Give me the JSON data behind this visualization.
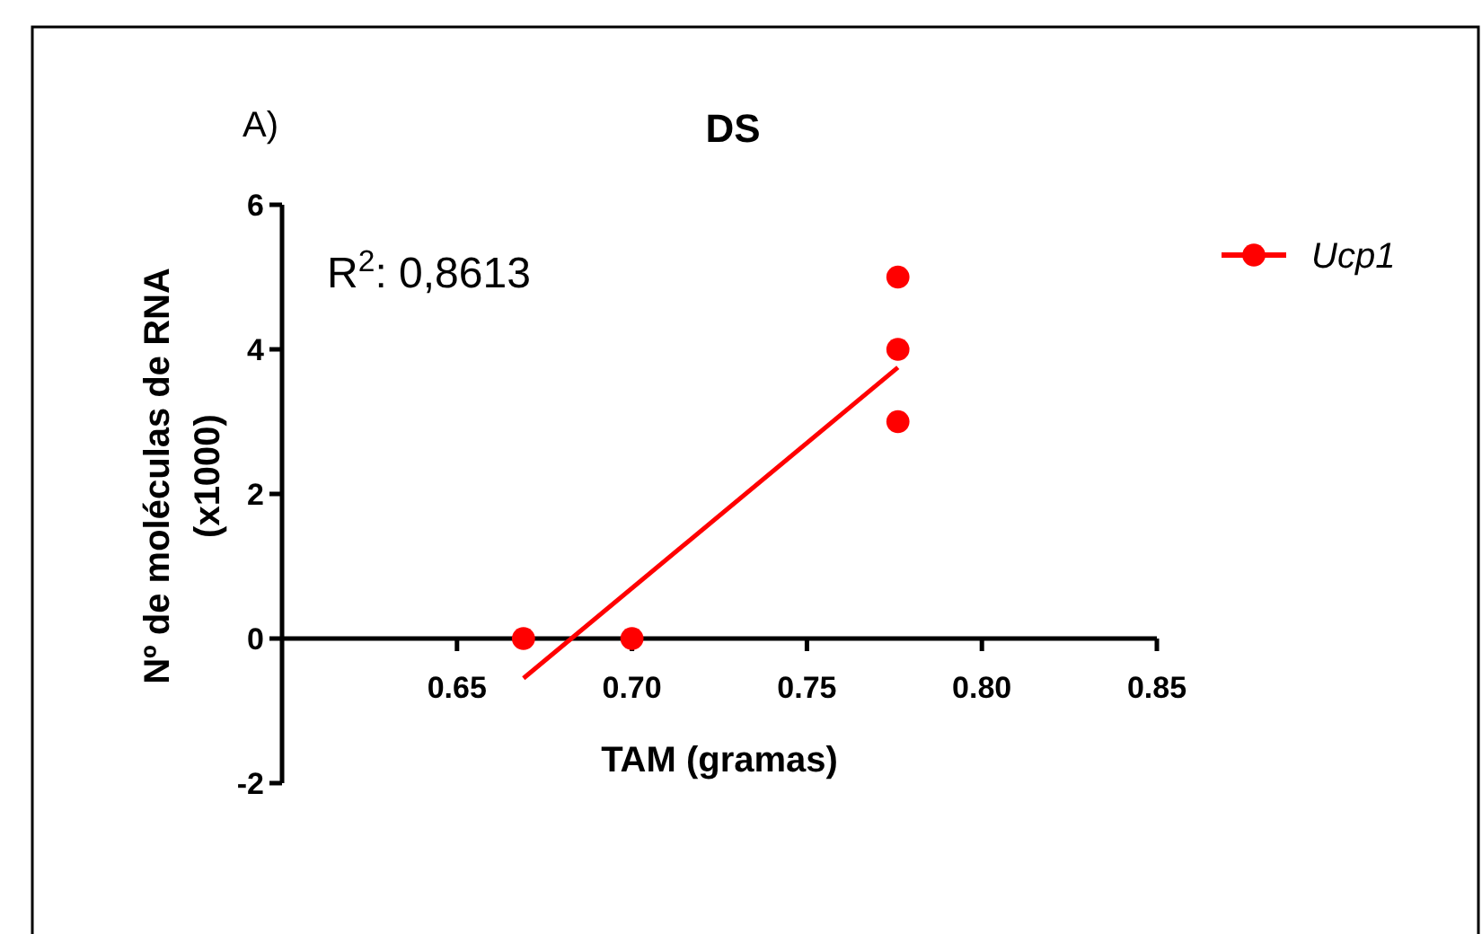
{
  "chart_data": {
    "type": "scatter",
    "title": "DS",
    "subtitle": "A)",
    "xlabel": "TAM (gramas)",
    "ylabel": "Nº de moléculas de RNA\n(x1000)",
    "annotations": [
      "R$^{2}$: 0,8613"
    ],
    "xlim": [
      0.6,
      0.85
    ],
    "xticks": [
      0.65,
      {
        "value": 0.7,
        "label": "0.70"
      },
      0.75,
      {
        "value": 0.8,
        "label": "0.80"
      },
      0.85
    ],
    "ylim": [
      -2,
      6
    ],
    "yticks": [
      -2,
      0,
      2,
      4,
      6
    ],
    "grid": false,
    "legend": "top right",
    "series": [
      {
        "name": "Ucp1",
        "marker": "circle",
        "color": "#ff0000",
        "x": [
          0.669,
          0.7,
          0.776,
          0.776,
          0.776
        ],
        "values": [
          0,
          0,
          5,
          4,
          3
        ]
      },
      {
        "type": "line",
        "marker": "none",
        "color": "#ff0000",
        "line_style": "solid",
        "x": [
          0.669,
          0.776
        ],
        "values": [
          -0.55,
          3.75
        ]
      }
    ]
  }
}
